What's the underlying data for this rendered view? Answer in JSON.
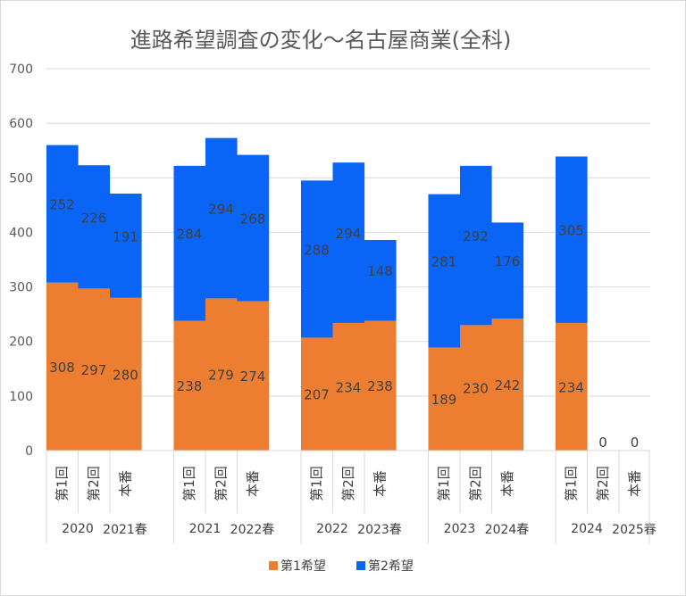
{
  "chart_data": {
    "type": "bar",
    "stacked": true,
    "title": "進路希望調査の変化～名古屋商業(全科)",
    "ylim": [
      0,
      700
    ],
    "yticks": [
      0,
      100,
      200,
      300,
      400,
      500,
      600,
      700
    ],
    "gridlines": true,
    "legend_position": "bottom",
    "groups": [
      {
        "label_a": "2020",
        "label_b": "2021春",
        "categories": [
          "第1回",
          "第2回",
          "本番"
        ]
      },
      {
        "label_a": "2021",
        "label_b": "2022春",
        "categories": [
          "第1回",
          "第2回",
          "本番"
        ]
      },
      {
        "label_a": "2022",
        "label_b": "2023春",
        "categories": [
          "第1回",
          "第2回",
          "本番"
        ]
      },
      {
        "label_a": "2023",
        "label_b": "2024春",
        "categories": [
          "第1回",
          "第2回",
          "本番"
        ]
      },
      {
        "label_a": "2024",
        "label_b": "2025春",
        "categories": [
          "第1回",
          "第2回",
          "本番"
        ]
      }
    ],
    "series": [
      {
        "name": "第1希望",
        "color": "#ed7d31",
        "values": [
          308,
          297,
          280,
          238,
          279,
          274,
          207,
          234,
          238,
          189,
          230,
          242,
          234,
          0,
          0
        ]
      },
      {
        "name": "第2希望",
        "color": "#0a64f5",
        "values": [
          252,
          226,
          191,
          284,
          294,
          268,
          288,
          294,
          148,
          281,
          292,
          176,
          305,
          null,
          null
        ]
      }
    ]
  }
}
